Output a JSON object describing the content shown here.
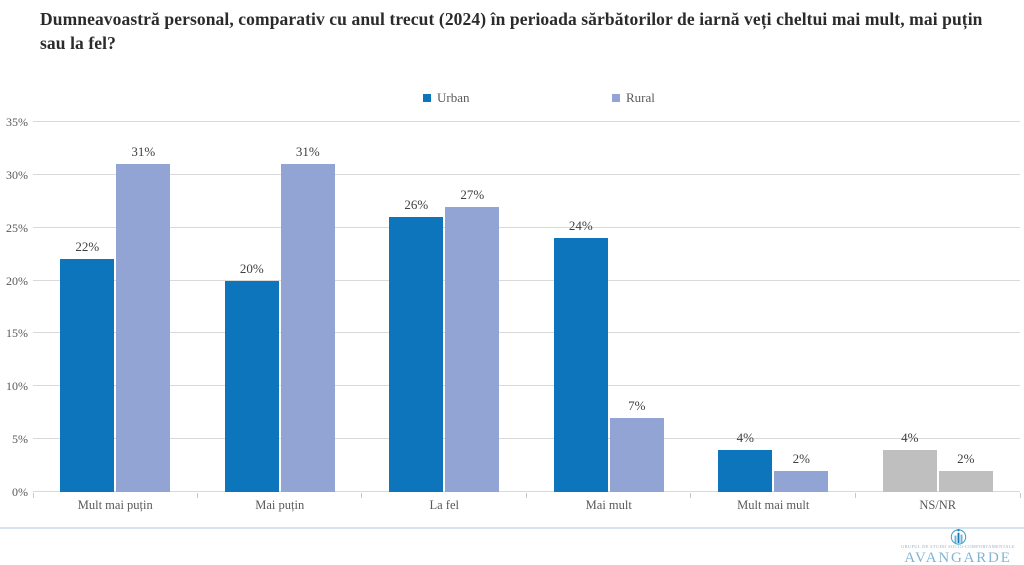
{
  "title": "Dumneavoastră personal, comparativ cu anul trecut (2024) în perioada sărbătorilor de iarnă veți cheltui mai mult, mai puțin sau la fel?",
  "chart_data": {
    "type": "bar",
    "title": "Dumneavoastră personal, comparativ cu anul trecut (2024) în perioada sărbătorilor de iarnă veți cheltui mai mult, mai puțin sau la fel?",
    "categories": [
      "Mult mai puțin",
      "Mai puțin",
      "La fel",
      "Mai mult",
      "Mult mai mult",
      "NS/NR"
    ],
    "series": [
      {
        "name": "Urban",
        "color": "#0d75bc",
        "values": [
          22,
          20,
          26,
          24,
          4,
          4
        ],
        "value_labels": [
          "22%",
          "20%",
          "26%",
          "24%",
          "4%",
          "4%"
        ]
      },
      {
        "name": "Rural",
        "color": "#92a4d4",
        "values": [
          31,
          31,
          27,
          7,
          2,
          2
        ],
        "value_labels": [
          "31%",
          "31%",
          "27%",
          "7%",
          "2%",
          "2%"
        ]
      }
    ],
    "category_color_overrides": {
      "NS/NR": "#bfbfbf"
    },
    "xlabel": "",
    "ylabel": "",
    "ylim": [
      0,
      35
    ],
    "y_ticks": [
      0,
      5,
      10,
      15,
      20,
      25,
      30,
      35
    ],
    "y_tick_suffix": "%",
    "grid": true,
    "legend_position": "top",
    "gridline_color": "#d9d9d9"
  },
  "footer": {
    "logo_text": "AVANGARDE",
    "logo_subtext": "GRUPUL DE STUDII SOCIO-COMPORTAMENTALE"
  }
}
